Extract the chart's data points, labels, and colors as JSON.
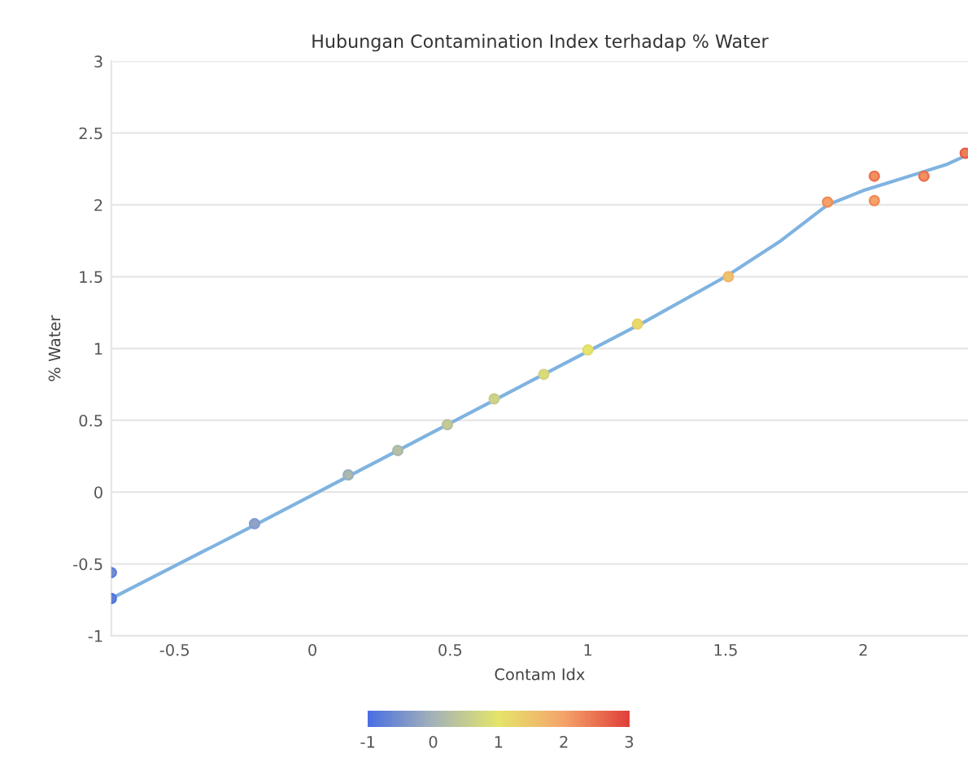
{
  "chart_data": {
    "type": "scatter",
    "title": "Hubungan Contamination Index terhadap % Water",
    "xlabel": "Contam Idx",
    "ylabel": "% Water",
    "series": [
      {
        "marker": "circle",
        "cvalues": [
          -0.56,
          -0.74,
          -0.22,
          0.12,
          0.29,
          0.47,
          0.65,
          0.82,
          0.99,
          1.17,
          1.5,
          2.02,
          2.2,
          2.03,
          2.2,
          2.36
        ],
        "x": [
          -0.73,
          -0.73,
          -0.21,
          0.13,
          0.31,
          0.49,
          0.66,
          0.84,
          1.0,
          1.18,
          1.51,
          1.87,
          2.04,
          2.04,
          2.22,
          2.37
        ],
        "values": [
          -0.56,
          -0.74,
          -0.22,
          0.12,
          0.29,
          0.47,
          0.65,
          0.82,
          0.99,
          1.17,
          1.5,
          2.02,
          2.2,
          2.03,
          2.2,
          2.36
        ],
        "colors": [
          "#5a7ee0",
          "#4f72e2",
          "#7f9bd2",
          "#9aaebc",
          "#a8b7b0",
          "#b7c1a0",
          "#c6cb8e",
          "#d4d37d",
          "#e2da6c",
          "#e9cf6a",
          "#f2b56a",
          "#f08a56",
          "#eb6e4c",
          "#f08955",
          "#eb6e4c",
          "#e65a44"
        ]
      },
      {
        "type": "line",
        "color": "#7fb3e0",
        "x": [
          -0.73,
          -0.2,
          0.3,
          0.8,
          1.2,
          1.5,
          1.7,
          1.87,
          2.0,
          2.1,
          2.2,
          2.3,
          2.38
        ],
        "values": [
          -0.74,
          -0.22,
          0.28,
          0.78,
          1.18,
          1.5,
          1.75,
          2.0,
          2.1,
          2.16,
          2.22,
          2.28,
          2.35
        ]
      }
    ],
    "xlim": [
      -0.73,
      2.38
    ],
    "ylim": [
      -1,
      3
    ],
    "xticks": [
      -0.5,
      0,
      0.5,
      1,
      1.5,
      2
    ],
    "yticks": [
      -1,
      -0.5,
      0,
      0.5,
      1,
      1.5,
      2,
      2.5,
      3
    ],
    "clim": [
      -1,
      3
    ],
    "cticks": [
      -1,
      0,
      1,
      2,
      3
    ],
    "grid": "y",
    "line_style": "solid"
  }
}
